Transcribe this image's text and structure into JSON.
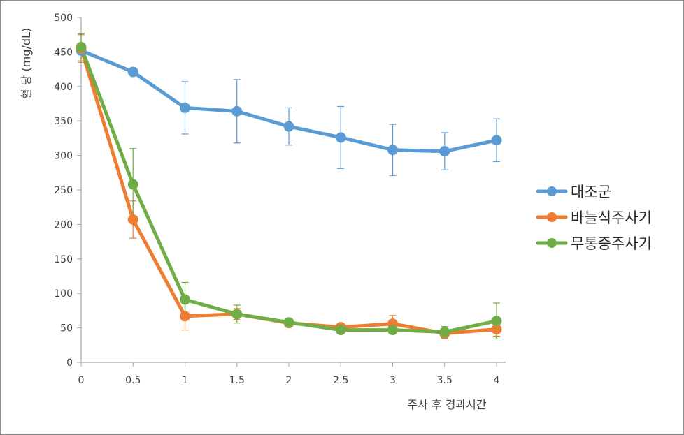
{
  "chart_data": {
    "type": "line",
    "x": [
      0,
      0.5,
      1,
      1.5,
      2,
      2.5,
      3,
      3.5,
      4
    ],
    "x_tick_labels": [
      "0",
      "0.5",
      "1",
      "1.5",
      "2",
      "2.5",
      "3",
      "3.5",
      "4"
    ],
    "y_tick_labels": [
      "0",
      "50",
      "100",
      "150",
      "200",
      "250",
      "300",
      "350",
      "400",
      "450",
      "500"
    ],
    "xlim": [
      0,
      4
    ],
    "ylim": [
      0,
      500
    ],
    "xlabel": "주사 후 경과시간",
    "ylabel": "혈 당 (mg/dL)",
    "grid": false,
    "legend_position": "right",
    "series": [
      {
        "name": "대조군",
        "color": "#5b9bd5",
        "values": [
          452,
          421,
          369,
          364,
          342,
          326,
          308,
          306,
          322
        ],
        "error": [
          0,
          5,
          38,
          46,
          27,
          45,
          37,
          27,
          31
        ]
      },
      {
        "name": "바늘식주사기",
        "color": "#ed7d31",
        "values": [
          455,
          207,
          67,
          70,
          57,
          51,
          56,
          42,
          48
        ],
        "error": [
          20,
          27,
          20,
          8,
          5,
          5,
          12,
          7,
          10
        ]
      },
      {
        "name": "무통증주사기",
        "color": "#70ad47",
        "values": [
          457,
          258,
          91,
          70,
          58,
          47,
          47,
          44,
          60
        ],
        "error": [
          20,
          52,
          25,
          13,
          5,
          3,
          3,
          8,
          26
        ]
      }
    ]
  }
}
